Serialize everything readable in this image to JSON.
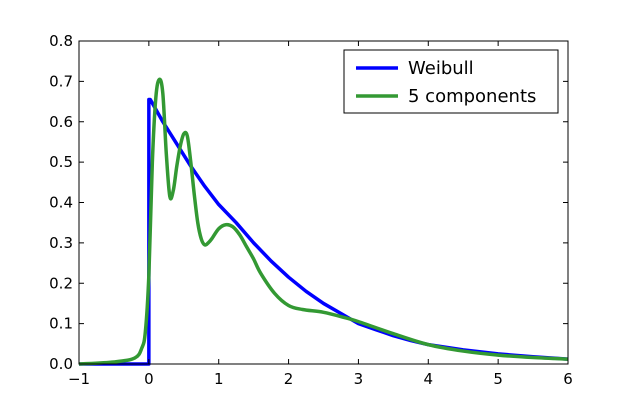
{
  "chart_data": {
    "type": "line",
    "xlim": [
      -1,
      6
    ],
    "ylim": [
      0,
      0.8
    ],
    "xticks": [
      -1,
      0,
      1,
      2,
      3,
      4,
      5,
      6
    ],
    "yticks": [
      0.0,
      0.1,
      0.2,
      0.3,
      0.4,
      0.5,
      0.6,
      0.7,
      0.8
    ],
    "xtick_labels": [
      "−1",
      "0",
      "1",
      "2",
      "3",
      "4",
      "5",
      "6"
    ],
    "ytick_labels": [
      "0.0",
      "0.1",
      "0.2",
      "0.3",
      "0.4",
      "0.5",
      "0.6",
      "0.7",
      "0.8"
    ],
    "grid": false,
    "legend_position": "top-right",
    "series": [
      {
        "name": "Weibull",
        "color": "#0000ff",
        "x": [
          -1.0,
          0.0,
          0.0,
          0.02,
          0.2,
          0.4,
          0.6,
          0.8,
          1.0,
          1.25,
          1.5,
          1.75,
          2.0,
          2.25,
          2.5,
          2.75,
          3.0,
          3.25,
          3.5,
          3.75,
          4.0,
          4.5,
          5.0,
          5.5,
          6.0
        ],
        "y": [
          0.0,
          0.0,
          0.655,
          0.655,
          0.6,
          0.545,
          0.49,
          0.44,
          0.395,
          0.35,
          0.3,
          0.255,
          0.215,
          0.18,
          0.15,
          0.125,
          0.1,
          0.085,
          0.07,
          0.058,
          0.048,
          0.035,
          0.025,
          0.018,
          0.012
        ]
      },
      {
        "name": "5 components",
        "color": "#339933",
        "x": [
          -1.0,
          -0.5,
          -0.2,
          -0.1,
          -0.05,
          0.0,
          0.05,
          0.1,
          0.15,
          0.2,
          0.25,
          0.3,
          0.35,
          0.4,
          0.45,
          0.5,
          0.55,
          0.6,
          0.65,
          0.7,
          0.75,
          0.8,
          0.85,
          0.9,
          1.0,
          1.1,
          1.2,
          1.3,
          1.4,
          1.5,
          1.6,
          1.8,
          2.0,
          2.2,
          2.5,
          2.8,
          3.0,
          3.5,
          4.0,
          4.5,
          5.0,
          5.5,
          6.0
        ],
        "y": [
          0.0,
          0.005,
          0.015,
          0.04,
          0.08,
          0.22,
          0.5,
          0.66,
          0.705,
          0.67,
          0.52,
          0.415,
          0.43,
          0.49,
          0.54,
          0.57,
          0.565,
          0.5,
          0.42,
          0.35,
          0.31,
          0.295,
          0.3,
          0.31,
          0.335,
          0.345,
          0.34,
          0.32,
          0.29,
          0.26,
          0.225,
          0.175,
          0.145,
          0.135,
          0.128,
          0.115,
          0.105,
          0.075,
          0.048,
          0.032,
          0.022,
          0.016,
          0.012
        ]
      }
    ]
  }
}
